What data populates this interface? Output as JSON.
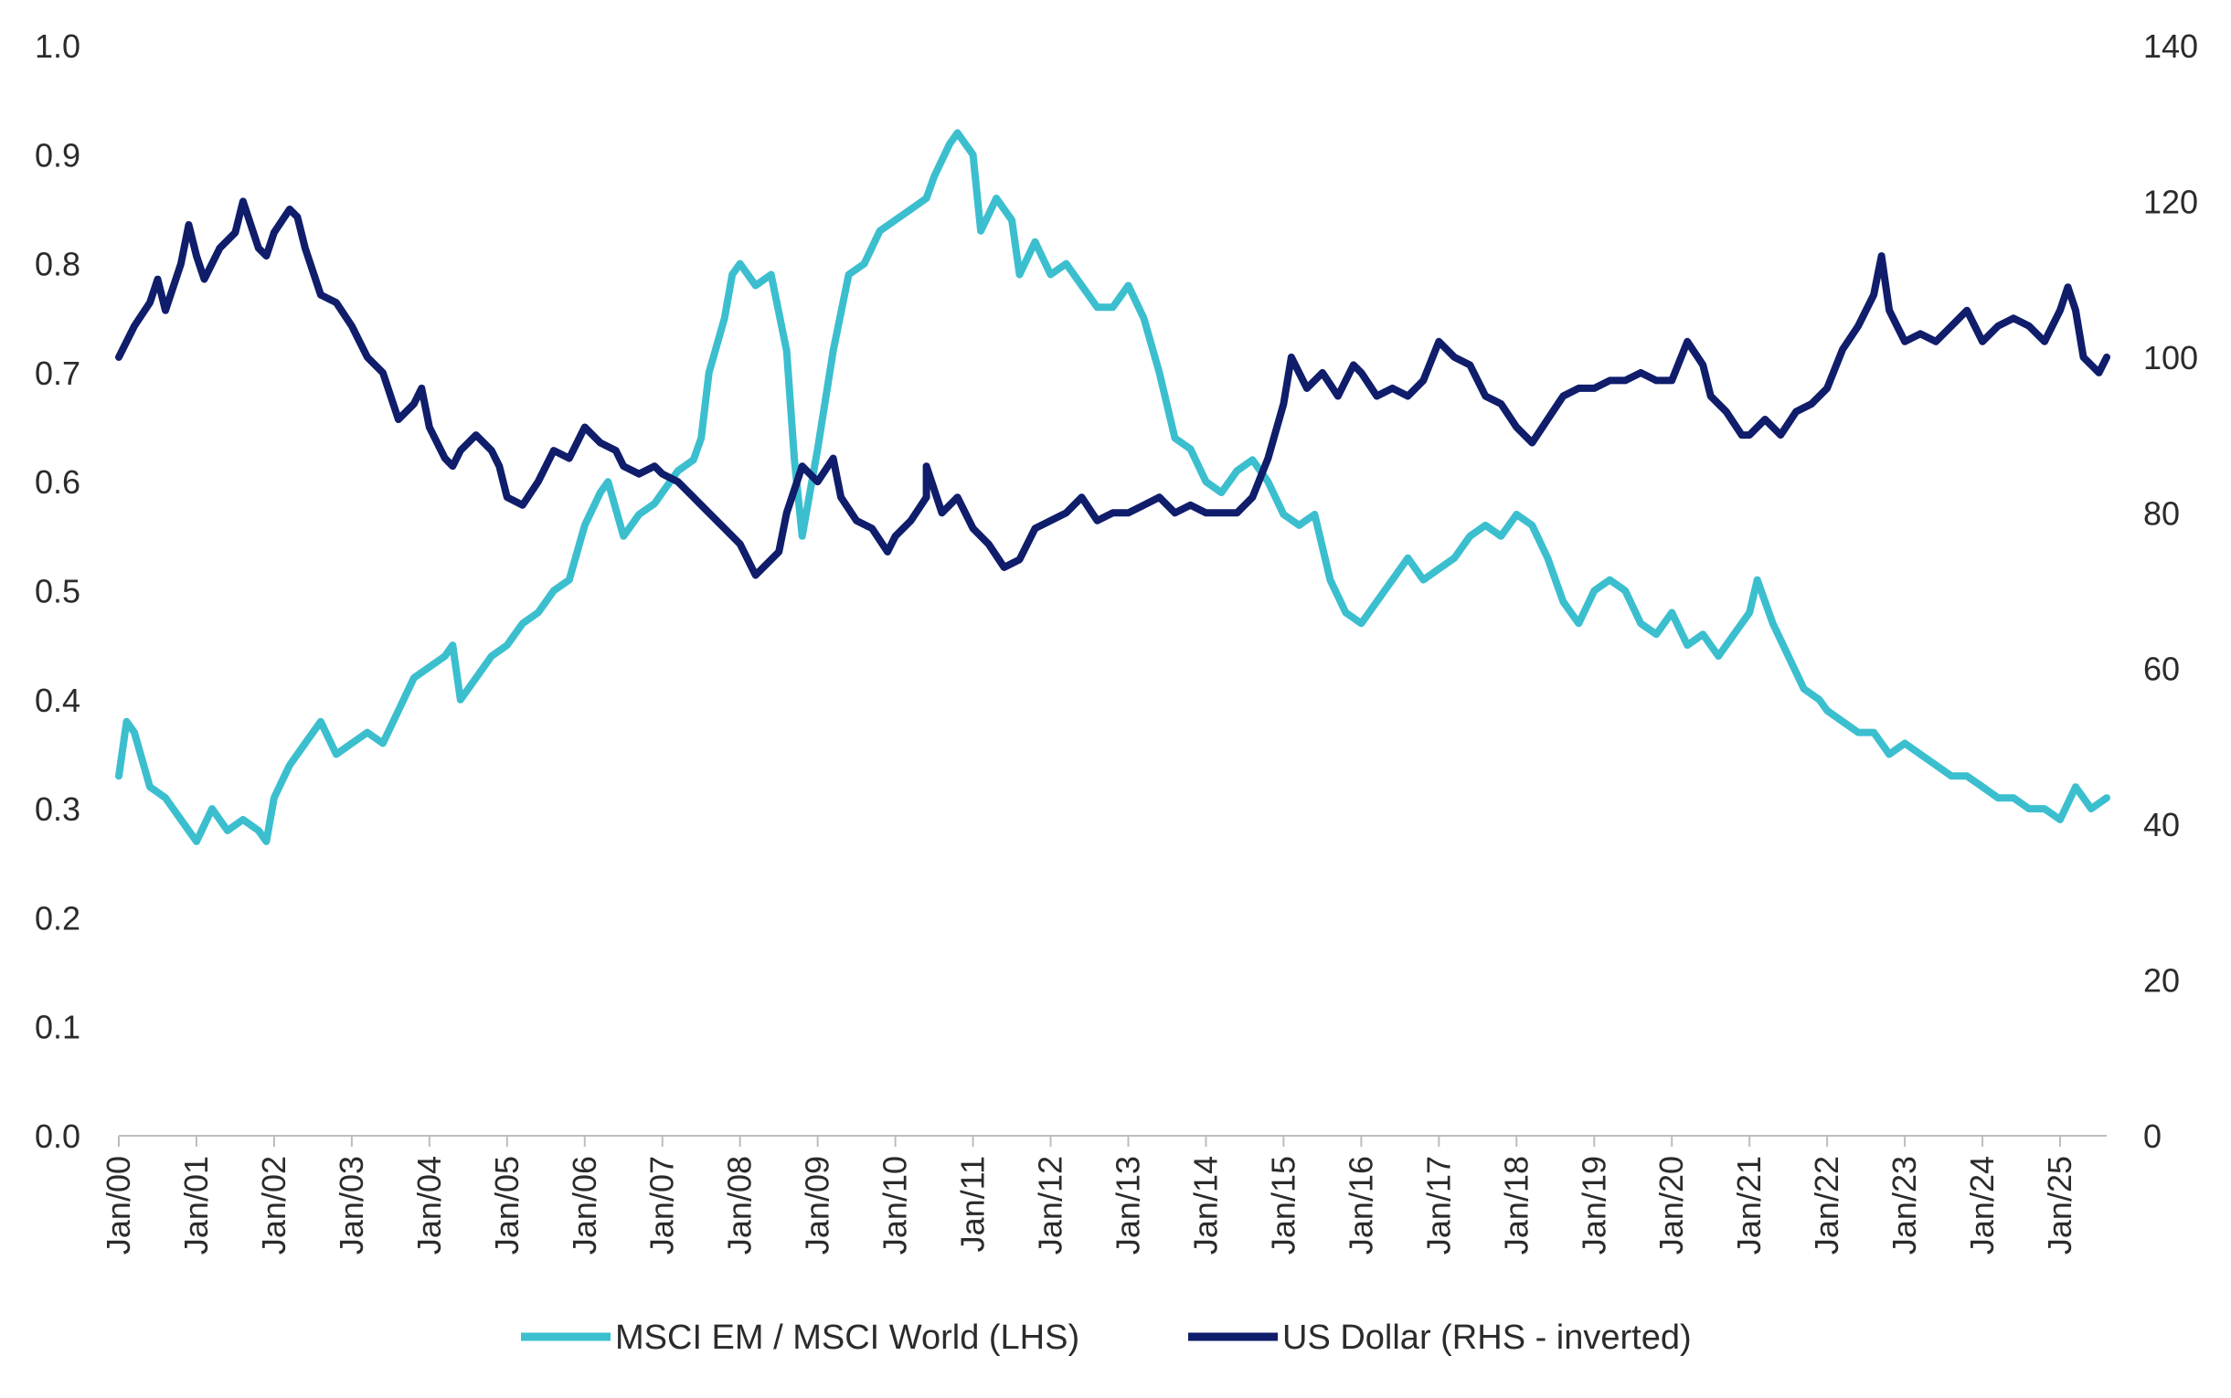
{
  "chart_data": {
    "type": "line",
    "title": "",
    "xlabel": "",
    "ylabel": "",
    "x_ticks": [
      "Jan/00",
      "Jan/01",
      "Jan/02",
      "Jan/03",
      "Jan/04",
      "Jan/05",
      "Jan/06",
      "Jan/07",
      "Jan/08",
      "Jan/09",
      "Jan/10",
      "Jan/11",
      "Jan/12",
      "Jan/13",
      "Jan/14",
      "Jan/15",
      "Jan/16",
      "Jan/17",
      "Jan/18",
      "Jan/19",
      "Jan/20",
      "Jan/21",
      "Jan/22",
      "Jan/23",
      "Jan/24",
      "Jan/25"
    ],
    "xlim": [
      2000.0,
      2025.6
    ],
    "left_axis": {
      "ylim": [
        0,
        1.0
      ],
      "ticks": [
        "0.0",
        "0.1",
        "0.2",
        "0.3",
        "0.4",
        "0.5",
        "0.6",
        "0.7",
        "0.8",
        "0.9",
        "1.0"
      ]
    },
    "right_axis": {
      "ylim": [
        0,
        140
      ],
      "ticks": [
        "0",
        "20",
        "40",
        "60",
        "80",
        "100",
        "120",
        "140"
      ],
      "inverted_series": true
    },
    "legend": {
      "position": "bottom-center"
    },
    "series": [
      {
        "name": "MSCI EM / MSCI World (LHS)",
        "axis": "left",
        "color": "#3bbfcf",
        "points": [
          [
            2000.0,
            0.33
          ],
          [
            2000.1,
            0.38
          ],
          [
            2000.2,
            0.37
          ],
          [
            2000.4,
            0.32
          ],
          [
            2000.6,
            0.31
          ],
          [
            2000.9,
            0.28
          ],
          [
            2001.0,
            0.27
          ],
          [
            2001.2,
            0.3
          ],
          [
            2001.4,
            0.28
          ],
          [
            2001.6,
            0.29
          ],
          [
            2001.8,
            0.28
          ],
          [
            2001.9,
            0.27
          ],
          [
            2002.0,
            0.31
          ],
          [
            2002.2,
            0.34
          ],
          [
            2002.4,
            0.36
          ],
          [
            2002.6,
            0.38
          ],
          [
            2002.8,
            0.35
          ],
          [
            2003.0,
            0.36
          ],
          [
            2003.2,
            0.37
          ],
          [
            2003.4,
            0.36
          ],
          [
            2003.6,
            0.39
          ],
          [
            2003.8,
            0.42
          ],
          [
            2004.0,
            0.43
          ],
          [
            2004.2,
            0.44
          ],
          [
            2004.3,
            0.45
          ],
          [
            2004.4,
            0.4
          ],
          [
            2004.6,
            0.42
          ],
          [
            2004.8,
            0.44
          ],
          [
            2005.0,
            0.45
          ],
          [
            2005.2,
            0.47
          ],
          [
            2005.4,
            0.48
          ],
          [
            2005.6,
            0.5
          ],
          [
            2005.8,
            0.51
          ],
          [
            2006.0,
            0.56
          ],
          [
            2006.2,
            0.59
          ],
          [
            2006.3,
            0.6
          ],
          [
            2006.5,
            0.55
          ],
          [
            2006.7,
            0.57
          ],
          [
            2006.9,
            0.58
          ],
          [
            2007.0,
            0.59
          ],
          [
            2007.2,
            0.61
          ],
          [
            2007.4,
            0.62
          ],
          [
            2007.5,
            0.64
          ],
          [
            2007.6,
            0.7
          ],
          [
            2007.8,
            0.75
          ],
          [
            2007.9,
            0.79
          ],
          [
            2008.0,
            0.8
          ],
          [
            2008.2,
            0.78
          ],
          [
            2008.4,
            0.79
          ],
          [
            2008.6,
            0.72
          ],
          [
            2008.7,
            0.62
          ],
          [
            2008.8,
            0.55
          ],
          [
            2009.0,
            0.63
          ],
          [
            2009.2,
            0.72
          ],
          [
            2009.4,
            0.79
          ],
          [
            2009.6,
            0.8
          ],
          [
            2009.8,
            0.83
          ],
          [
            2010.0,
            0.84
          ],
          [
            2010.2,
            0.85
          ],
          [
            2010.4,
            0.86
          ],
          [
            2010.5,
            0.88
          ],
          [
            2010.7,
            0.91
          ],
          [
            2010.8,
            0.92
          ],
          [
            2011.0,
            0.9
          ],
          [
            2011.1,
            0.83
          ],
          [
            2011.3,
            0.86
          ],
          [
            2011.5,
            0.84
          ],
          [
            2011.6,
            0.79
          ],
          [
            2011.8,
            0.82
          ],
          [
            2012.0,
            0.79
          ],
          [
            2012.2,
            0.8
          ],
          [
            2012.4,
            0.78
          ],
          [
            2012.6,
            0.76
          ],
          [
            2012.8,
            0.76
          ],
          [
            2013.0,
            0.78
          ],
          [
            2013.2,
            0.75
          ],
          [
            2013.4,
            0.7
          ],
          [
            2013.6,
            0.64
          ],
          [
            2013.8,
            0.63
          ],
          [
            2014.0,
            0.6
          ],
          [
            2014.2,
            0.59
          ],
          [
            2014.4,
            0.61
          ],
          [
            2014.6,
            0.62
          ],
          [
            2014.8,
            0.6
          ],
          [
            2015.0,
            0.57
          ],
          [
            2015.2,
            0.56
          ],
          [
            2015.4,
            0.57
          ],
          [
            2015.6,
            0.51
          ],
          [
            2015.8,
            0.48
          ],
          [
            2016.0,
            0.47
          ],
          [
            2016.2,
            0.49
          ],
          [
            2016.4,
            0.51
          ],
          [
            2016.6,
            0.53
          ],
          [
            2016.8,
            0.51
          ],
          [
            2017.0,
            0.52
          ],
          [
            2017.2,
            0.53
          ],
          [
            2017.4,
            0.55
          ],
          [
            2017.6,
            0.56
          ],
          [
            2017.8,
            0.55
          ],
          [
            2018.0,
            0.57
          ],
          [
            2018.2,
            0.56
          ],
          [
            2018.4,
            0.53
          ],
          [
            2018.6,
            0.49
          ],
          [
            2018.8,
            0.47
          ],
          [
            2019.0,
            0.5
          ],
          [
            2019.2,
            0.51
          ],
          [
            2019.4,
            0.5
          ],
          [
            2019.6,
            0.47
          ],
          [
            2019.8,
            0.46
          ],
          [
            2020.0,
            0.48
          ],
          [
            2020.2,
            0.45
          ],
          [
            2020.4,
            0.46
          ],
          [
            2020.6,
            0.44
          ],
          [
            2020.8,
            0.46
          ],
          [
            2021.0,
            0.48
          ],
          [
            2021.1,
            0.51
          ],
          [
            2021.3,
            0.47
          ],
          [
            2021.5,
            0.44
          ],
          [
            2021.7,
            0.41
          ],
          [
            2021.9,
            0.4
          ],
          [
            2022.0,
            0.39
          ],
          [
            2022.2,
            0.38
          ],
          [
            2022.4,
            0.37
          ],
          [
            2022.6,
            0.37
          ],
          [
            2022.8,
            0.35
          ],
          [
            2023.0,
            0.36
          ],
          [
            2023.2,
            0.35
          ],
          [
            2023.4,
            0.34
          ],
          [
            2023.6,
            0.33
          ],
          [
            2023.8,
            0.33
          ],
          [
            2024.0,
            0.32
          ],
          [
            2024.2,
            0.31
          ],
          [
            2024.4,
            0.31
          ],
          [
            2024.6,
            0.3
          ],
          [
            2024.8,
            0.3
          ],
          [
            2025.0,
            0.29
          ],
          [
            2025.2,
            0.32
          ],
          [
            2025.4,
            0.3
          ],
          [
            2025.6,
            0.31
          ]
        ]
      },
      {
        "name": "US Dollar (RHS - inverted)",
        "axis": "right",
        "color": "#0f1d6b",
        "points": [
          [
            2000.0,
            100
          ],
          [
            2000.2,
            104
          ],
          [
            2000.4,
            107
          ],
          [
            2000.5,
            110
          ],
          [
            2000.6,
            106
          ],
          [
            2000.8,
            112
          ],
          [
            2000.9,
            117
          ],
          [
            2001.0,
            113
          ],
          [
            2001.1,
            110
          ],
          [
            2001.3,
            114
          ],
          [
            2001.5,
            116
          ],
          [
            2001.6,
            120
          ],
          [
            2001.8,
            114
          ],
          [
            2001.9,
            113
          ],
          [
            2002.0,
            116
          ],
          [
            2002.2,
            119
          ],
          [
            2002.3,
            118
          ],
          [
            2002.4,
            114
          ],
          [
            2002.6,
            108
          ],
          [
            2002.8,
            107
          ],
          [
            2003.0,
            104
          ],
          [
            2003.2,
            100
          ],
          [
            2003.4,
            98
          ],
          [
            2003.6,
            92
          ],
          [
            2003.8,
            94
          ],
          [
            2003.9,
            96
          ],
          [
            2004.0,
            91
          ],
          [
            2004.2,
            87
          ],
          [
            2004.3,
            86
          ],
          [
            2004.4,
            88
          ],
          [
            2004.6,
            90
          ],
          [
            2004.8,
            88
          ],
          [
            2004.9,
            86
          ],
          [
            2005.0,
            82
          ],
          [
            2005.2,
            81
          ],
          [
            2005.4,
            84
          ],
          [
            2005.6,
            88
          ],
          [
            2005.8,
            87
          ],
          [
            2006.0,
            91
          ],
          [
            2006.2,
            89
          ],
          [
            2006.4,
            88
          ],
          [
            2006.5,
            86
          ],
          [
            2006.7,
            85
          ],
          [
            2006.9,
            86
          ],
          [
            2007.0,
            85
          ],
          [
            2007.2,
            84
          ],
          [
            2007.4,
            82
          ],
          [
            2007.6,
            80
          ],
          [
            2007.8,
            78
          ],
          [
            2008.0,
            76
          ],
          [
            2008.2,
            72
          ],
          [
            2008.3,
            73
          ],
          [
            2008.5,
            75
          ],
          [
            2008.6,
            80
          ],
          [
            2008.8,
            86
          ],
          [
            2009.0,
            84
          ],
          [
            2009.2,
            87
          ],
          [
            2009.3,
            82
          ],
          [
            2009.5,
            79
          ],
          [
            2009.7,
            78
          ],
          [
            2009.9,
            75
          ],
          [
            2010.0,
            77
          ],
          [
            2010.2,
            79
          ],
          [
            2010.4,
            82
          ],
          [
            2010.4,
            86
          ],
          [
            2010.6,
            80
          ],
          [
            2010.8,
            82
          ],
          [
            2011.0,
            78
          ],
          [
            2011.2,
            76
          ],
          [
            2011.4,
            73
          ],
          [
            2011.6,
            74
          ],
          [
            2011.8,
            78
          ],
          [
            2012.0,
            79
          ],
          [
            2012.2,
            80
          ],
          [
            2012.4,
            82
          ],
          [
            2012.6,
            79
          ],
          [
            2012.8,
            80
          ],
          [
            2013.0,
            80
          ],
          [
            2013.2,
            81
          ],
          [
            2013.4,
            82
          ],
          [
            2013.6,
            80
          ],
          [
            2013.8,
            81
          ],
          [
            2014.0,
            80
          ],
          [
            2014.2,
            80
          ],
          [
            2014.4,
            80
          ],
          [
            2014.6,
            82
          ],
          [
            2014.8,
            87
          ],
          [
            2015.0,
            94
          ],
          [
            2015.1,
            100
          ],
          [
            2015.3,
            96
          ],
          [
            2015.5,
            98
          ],
          [
            2015.7,
            95
          ],
          [
            2015.9,
            99
          ],
          [
            2016.0,
            98
          ],
          [
            2016.2,
            95
          ],
          [
            2016.4,
            96
          ],
          [
            2016.6,
            95
          ],
          [
            2016.8,
            97
          ],
          [
            2017.0,
            102
          ],
          [
            2017.2,
            100
          ],
          [
            2017.4,
            99
          ],
          [
            2017.6,
            95
          ],
          [
            2017.8,
            94
          ],
          [
            2018.0,
            91
          ],
          [
            2018.2,
            89
          ],
          [
            2018.4,
            92
          ],
          [
            2018.6,
            95
          ],
          [
            2018.8,
            96
          ],
          [
            2019.0,
            96
          ],
          [
            2019.2,
            97
          ],
          [
            2019.4,
            97
          ],
          [
            2019.6,
            98
          ],
          [
            2019.8,
            97
          ],
          [
            2020.0,
            97
          ],
          [
            2020.2,
            102
          ],
          [
            2020.4,
            99
          ],
          [
            2020.5,
            95
          ],
          [
            2020.7,
            93
          ],
          [
            2020.9,
            90
          ],
          [
            2021.0,
            90
          ],
          [
            2021.2,
            92
          ],
          [
            2021.4,
            90
          ],
          [
            2021.6,
            93
          ],
          [
            2021.8,
            94
          ],
          [
            2022.0,
            96
          ],
          [
            2022.2,
            101
          ],
          [
            2022.4,
            104
          ],
          [
            2022.6,
            108
          ],
          [
            2022.7,
            113
          ],
          [
            2022.8,
            106
          ],
          [
            2023.0,
            102
          ],
          [
            2023.2,
            103
          ],
          [
            2023.4,
            102
          ],
          [
            2023.6,
            104
          ],
          [
            2023.8,
            106
          ],
          [
            2024.0,
            102
          ],
          [
            2024.2,
            104
          ],
          [
            2024.4,
            105
          ],
          [
            2024.6,
            104
          ],
          [
            2024.8,
            102
          ],
          [
            2025.0,
            106
          ],
          [
            2025.1,
            109
          ],
          [
            2025.2,
            106
          ],
          [
            2025.3,
            100
          ],
          [
            2025.5,
            98
          ],
          [
            2025.6,
            100
          ]
        ]
      }
    ]
  }
}
